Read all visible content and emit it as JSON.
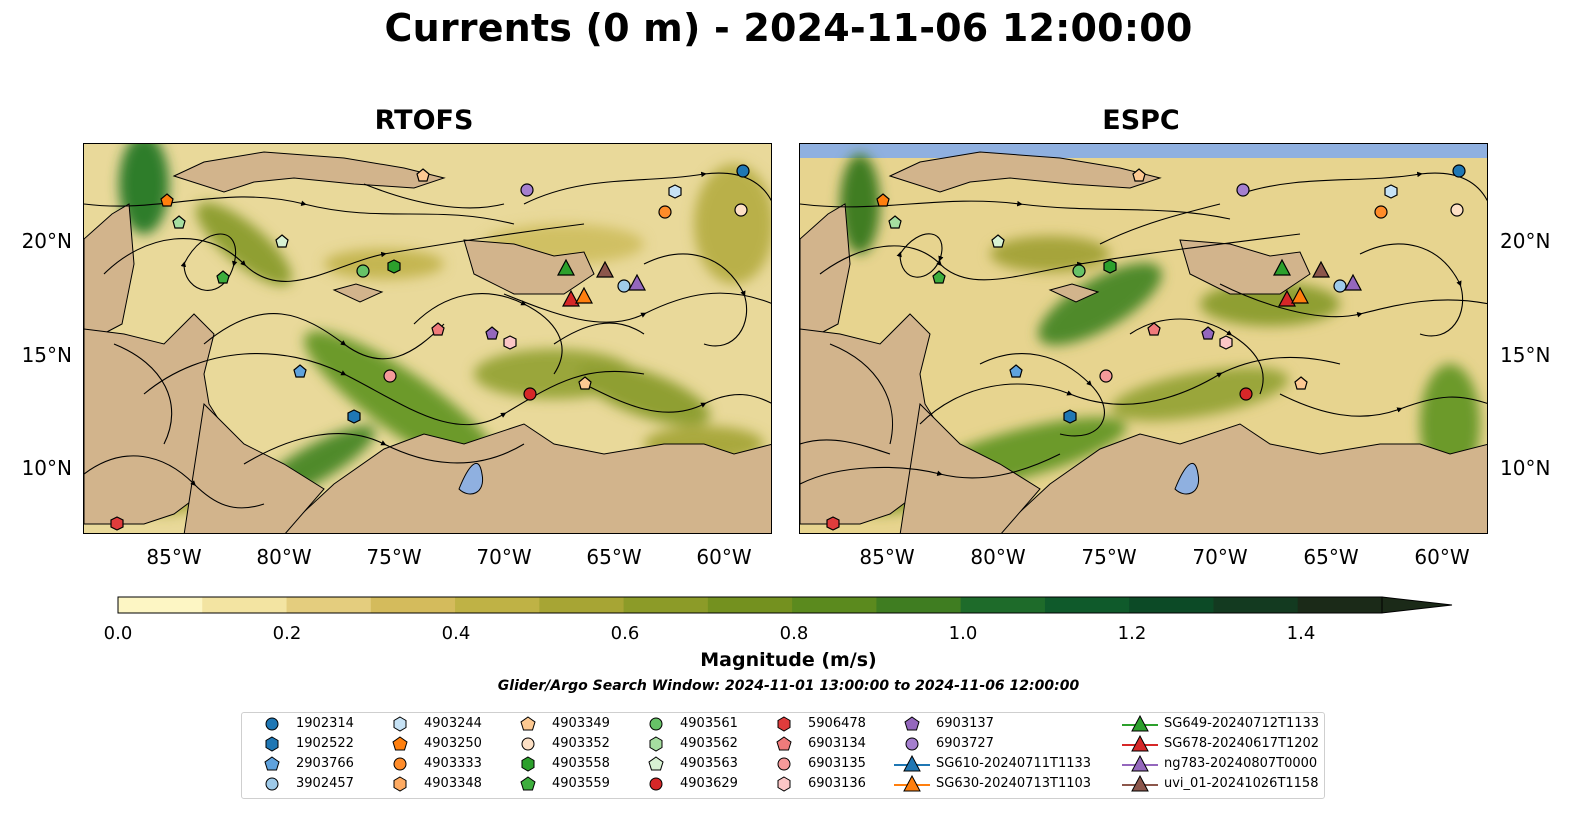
{
  "title": "Currents (0 m) - 2024-11-06 12:00:00",
  "panels": [
    {
      "title": "RTOFS"
    },
    {
      "title": "ESPC"
    }
  ],
  "y_ticks": [
    "20°N",
    "15°N",
    "10°N"
  ],
  "x_ticks": [
    "85°W",
    "80°W",
    "75°W",
    "70°W",
    "65°W",
    "60°W"
  ],
  "colorbar": {
    "label": "Magnitude (m/s)",
    "ticks": [
      "0.0",
      "0.2",
      "0.4",
      "0.6",
      "0.8",
      "1.0",
      "1.2",
      "1.4"
    ],
    "colors": [
      "#fdf6c4",
      "#f3e4a2",
      "#e4cd7e",
      "#d4bb5c",
      "#bfb245",
      "#a7a534",
      "#8c9b28",
      "#74911f",
      "#5b8a1e",
      "#3f7d21",
      "#1e6b2a",
      "#0f5a2b",
      "#0c4a26",
      "#133a20",
      "#1b2a18"
    ]
  },
  "search_window": "Glider/Argo Search Window: 2024-11-01 13:00:00 to 2024-11-06 12:00:00",
  "legend": {
    "items": [
      {
        "label": "1902314",
        "marker": "circle",
        "color": "#1f77b4"
      },
      {
        "label": "1902522",
        "marker": "hexagon",
        "color": "#1f77b4"
      },
      {
        "label": "2903766",
        "marker": "pentagon",
        "color": "#5fa2dd"
      },
      {
        "label": "3902457",
        "marker": "circle",
        "color": "#9ecae9"
      },
      {
        "label": "4903244",
        "marker": "hexagon",
        "color": "#c6e2f5"
      },
      {
        "label": "4903250",
        "marker": "pentagon",
        "color": "#ff7f0e"
      },
      {
        "label": "4903333",
        "marker": "circle",
        "color": "#ff8c2a"
      },
      {
        "label": "4903348",
        "marker": "hexagon",
        "color": "#ffab62"
      },
      {
        "label": "4903349",
        "marker": "pentagon",
        "color": "#fdc992"
      },
      {
        "label": "4903352",
        "marker": "circle",
        "color": "#fde0c5"
      },
      {
        "label": "4903558",
        "marker": "hexagon",
        "color": "#2ca02c"
      },
      {
        "label": "4903559",
        "marker": "pentagon",
        "color": "#3dae3d"
      },
      {
        "label": "4903561",
        "marker": "circle",
        "color": "#67c267"
      },
      {
        "label": "4903562",
        "marker": "hexagon",
        "color": "#a6dea0"
      },
      {
        "label": "4903563",
        "marker": "pentagon",
        "color": "#d8f2d3"
      },
      {
        "label": "4903629",
        "marker": "circle",
        "color": "#d62728"
      },
      {
        "label": "5906478",
        "marker": "hexagon",
        "color": "#e03c3c"
      },
      {
        "label": "6903134",
        "marker": "pentagon",
        "color": "#f07b7b"
      },
      {
        "label": "6903135",
        "marker": "circle",
        "color": "#f59a9a"
      },
      {
        "label": "6903136",
        "marker": "hexagon",
        "color": "#fbc6c6"
      },
      {
        "label": "6903137",
        "marker": "pentagon",
        "color": "#9467bd"
      },
      {
        "label": "6903727",
        "marker": "circle",
        "color": "#a57fcf"
      },
      {
        "label": "SG610-20240711T1133",
        "marker": "triangle",
        "color": "#1f77b4"
      },
      {
        "label": "SG630-20240713T1103",
        "marker": "triangle",
        "color": "#ff7f0e"
      },
      {
        "label": "SG649-20240712T1133",
        "marker": "triangle",
        "color": "#2ca02c"
      },
      {
        "label": "SG678-20240617T1202",
        "marker": "triangle",
        "color": "#d62728"
      },
      {
        "label": "ng783-20240807T0000",
        "marker": "triangle",
        "color": "#9467bd"
      },
      {
        "label": "uvi_01-20241026T1158",
        "marker": "triangle",
        "color": "#8c564b"
      }
    ]
  },
  "map_colors": {
    "land": "#d2b48c",
    "lake": "#8fb0e0",
    "river": "#9db3d6",
    "espc_mask": "#8fb0e0"
  }
}
